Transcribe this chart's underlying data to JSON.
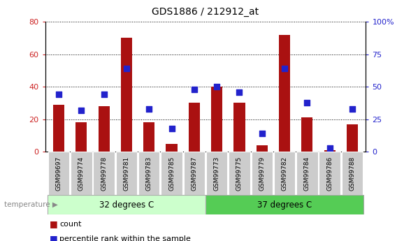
{
  "title": "GDS1886 / 212912_at",
  "categories": [
    "GSM99697",
    "GSM99774",
    "GSM99778",
    "GSM99781",
    "GSM99783",
    "GSM99785",
    "GSM99787",
    "GSM99773",
    "GSM99775",
    "GSM99779",
    "GSM99782",
    "GSM99784",
    "GSM99786",
    "GSM99788"
  ],
  "count_values": [
    29,
    18,
    28,
    70,
    18,
    5,
    30,
    40,
    30,
    4,
    72,
    21,
    1,
    17
  ],
  "percentile_values": [
    44,
    32,
    44,
    64,
    33,
    18,
    48,
    50,
    46,
    14,
    64,
    38,
    3,
    33
  ],
  "group1_label": "32 degrees C",
  "group2_label": "37 degrees C",
  "group1_indices": [
    0,
    1,
    2,
    3,
    4,
    5,
    6
  ],
  "group2_indices": [
    7,
    8,
    9,
    10,
    11,
    12,
    13
  ],
  "bar_color": "#aa1111",
  "dot_color": "#2222cc",
  "ylim_left": [
    0,
    80
  ],
  "ylim_right": [
    0,
    100
  ],
  "yticks_left": [
    0,
    20,
    40,
    60,
    80
  ],
  "yticks_right": [
    0,
    25,
    50,
    75,
    100
  ],
  "ytick_labels_right": [
    "0",
    "25",
    "50",
    "75",
    "100%"
  ],
  "group1_color": "#ccffcc",
  "group2_color": "#55cc55",
  "tick_label_bg": "#cccccc",
  "left_tick_color": "#cc2222",
  "right_tick_color": "#2222cc",
  "bar_width": 0.5,
  "dot_size": 35,
  "legend_count": "count",
  "legend_pct": "percentile rank within the sample",
  "temp_label": "temperature",
  "fig_width": 5.88,
  "fig_height": 3.45
}
